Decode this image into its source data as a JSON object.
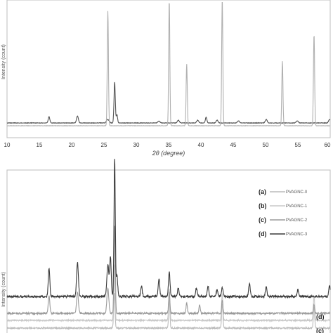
{
  "chart_data": [
    {
      "type": "line",
      "panel": "top",
      "title": "",
      "xlabel": "2θ (degree)",
      "ylabel": "Intensity (count)",
      "xlim": [
        10,
        60
      ],
      "x_ticks": [
        10,
        15,
        20,
        25,
        30,
        35,
        40,
        45,
        50,
        55,
        60
      ],
      "grid": false,
      "legend": "none",
      "series": [
        {
          "color": "#555555",
          "baseline": 6,
          "noise": 0.35,
          "peaks": [
            [
              16.5,
              9,
              0.12
            ],
            [
              20.9,
              10,
              0.14
            ],
            [
              25.6,
              5,
              0.2
            ],
            [
              26.65,
              58,
              0.1
            ],
            [
              27.0,
              12,
              0.1
            ],
            [
              33.5,
              3,
              0.15
            ],
            [
              36.5,
              4,
              0.15
            ],
            [
              39.5,
              4,
              0.15
            ],
            [
              40.8,
              8,
              0.12
            ],
            [
              42.5,
              4,
              0.15
            ],
            [
              45.8,
              3,
              0.15
            ],
            [
              50.1,
              5,
              0.15
            ],
            [
              54.9,
              3,
              0.15
            ],
            [
              59.9,
              5,
              0.15
            ]
          ]
        },
        {
          "color": "#b0b0b0",
          "baseline": 2,
          "noise": 0.25,
          "peaks": [
            [
              25.6,
              163,
              0.09
            ],
            [
              35.1,
              178,
              0.09
            ],
            [
              37.8,
              88,
              0.09
            ],
            [
              43.3,
              180,
              0.09
            ],
            [
              52.6,
              92,
              0.09
            ],
            [
              57.5,
              130,
              0.09
            ]
          ]
        }
      ]
    },
    {
      "type": "line",
      "panel": "bottom",
      "title": "",
      "xlabel": "",
      "ylabel": "Intensity (count)",
      "xlim": [
        10,
        60
      ],
      "grid": false,
      "legend": "top-right",
      "series": [
        {
          "name": "PVAGNC-0",
          "tag": "(a)",
          "curve_label": "",
          "color": "#bbbbbb",
          "baseline": -15,
          "noise": 1.0,
          "peaks": [
            [
              26.6,
              50,
              0.1
            ],
            [
              35.1,
              40,
              0.1
            ],
            [
              43.3,
              35,
              0.1
            ],
            [
              57.5,
              30,
              0.1
            ]
          ]
        },
        {
          "name": "PVAGNC-1",
          "tag": "(b)",
          "curve_label": "",
          "color": "#c8c8c8",
          "baseline": -4,
          "noise": 1.0,
          "peaks": [
            [
              26.6,
              80,
              0.1
            ],
            [
              35.1,
              45,
              0.1
            ],
            [
              43.3,
              38,
              0.1
            ],
            [
              57.5,
              35,
              0.1
            ]
          ]
        },
        {
          "name": "PVAGNC-2",
          "tag": "(c)",
          "curve_label": "(c)",
          "color": "#9a9a9a",
          "baseline": 6,
          "noise": 1.2,
          "peaks": [
            [
              16.5,
              25,
              0.12
            ],
            [
              20.9,
              30,
              0.14
            ],
            [
              25.6,
              35,
              0.15
            ],
            [
              26.65,
              125,
              0.1
            ],
            [
              35.1,
              30,
              0.1
            ],
            [
              37.8,
              15,
              0.1
            ],
            [
              39.8,
              12,
              0.1
            ],
            [
              43.3,
              18,
              0.1
            ],
            [
              57.5,
              12,
              0.1
            ]
          ]
        },
        {
          "name": "PVAGNC-3",
          "tag": "(d)",
          "curve_label": "(d)",
          "color": "#3a3a3a",
          "baseline": 30,
          "noise": 1.5,
          "peaks": [
            [
              16.5,
              40,
              0.12
            ],
            [
              20.9,
              48,
              0.14
            ],
            [
              25.6,
              45,
              0.15
            ],
            [
              26.0,
              55,
              0.12
            ],
            [
              26.65,
              195,
              0.1
            ],
            [
              27.0,
              30,
              0.12
            ],
            [
              30.8,
              15,
              0.12
            ],
            [
              33.5,
              25,
              0.12
            ],
            [
              35.1,
              35,
              0.12
            ],
            [
              36.5,
              12,
              0.12
            ],
            [
              39.3,
              12,
              0.12
            ],
            [
              41.1,
              15,
              0.12
            ],
            [
              42.5,
              10,
              0.12
            ],
            [
              43.3,
              12,
              0.12
            ],
            [
              47.5,
              18,
              0.12
            ],
            [
              50.1,
              14,
              0.12
            ],
            [
              55.0,
              10,
              0.12
            ],
            [
              59.9,
              15,
              0.12
            ]
          ]
        }
      ]
    }
  ]
}
